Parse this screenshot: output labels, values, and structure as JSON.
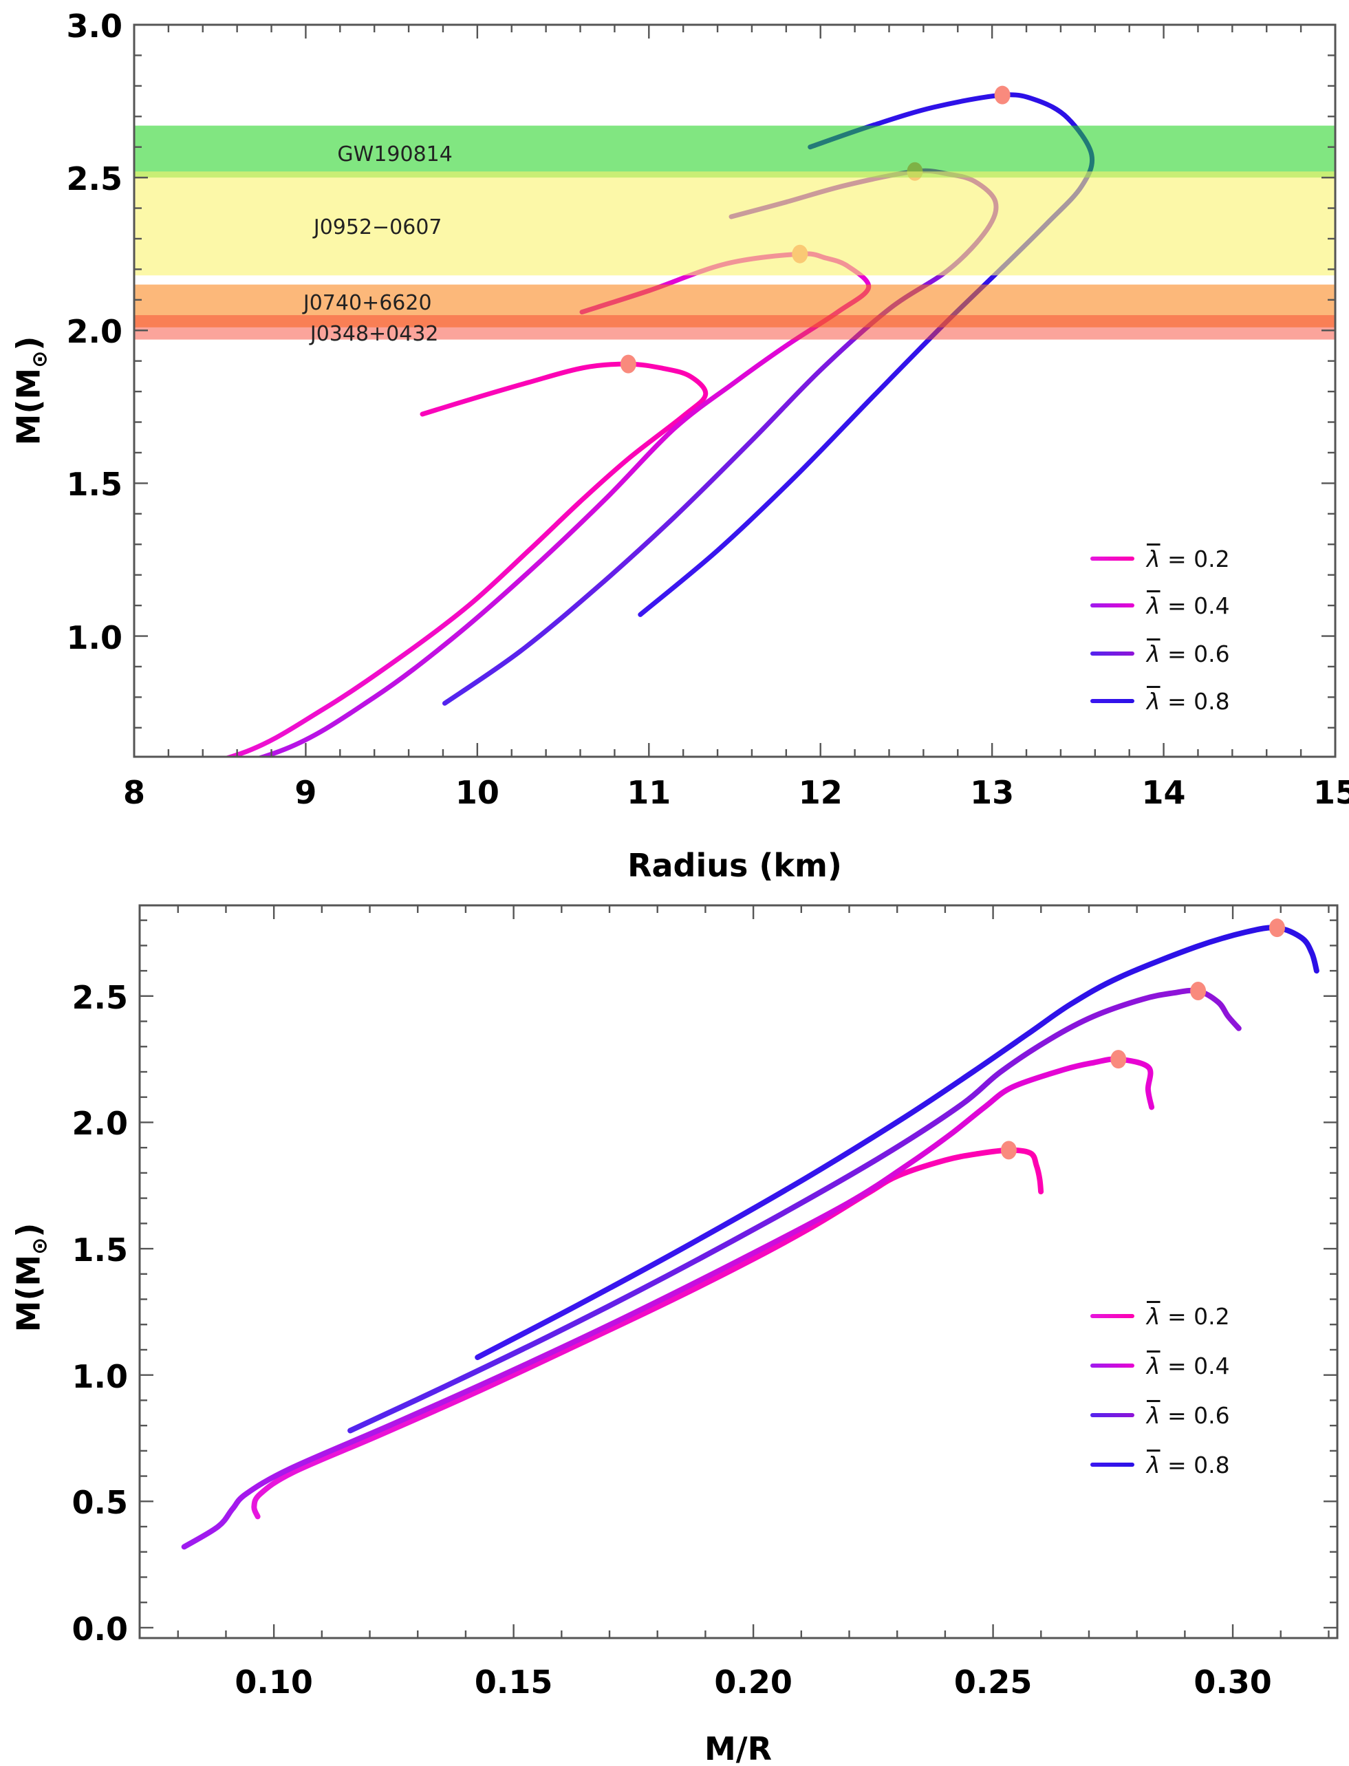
{
  "figure": {
    "description": "Two stacked plots of neutron star mass versus radius and versus compactness for four anisotropy parameters",
    "dot_color": "#F98A7D",
    "frame_color": "#555555"
  },
  "chart_data": [
    {
      "type": "line",
      "title": "",
      "xlabel": "Radius (km)",
      "ylabel": "M(M⊙)",
      "xlim": [
        8,
        15
      ],
      "ylim": [
        0.605,
        3.0
      ],
      "grid": false,
      "legend_position": "right-middle",
      "x_ticks": {
        "major": [
          8,
          9,
          10,
          11,
          12,
          13,
          14,
          15
        ],
        "labels": [
          "8",
          "9",
          "10",
          "11",
          "12",
          "13",
          "14",
          "15"
        ],
        "minor_step": 0.2
      },
      "y_ticks": {
        "major": [
          1.0,
          1.5,
          2.0,
          2.5,
          3.0
        ],
        "labels": [
          "1.0",
          "1.5",
          "2.0",
          "2.5",
          "3.0"
        ],
        "minor_step": 0.1
      },
      "bands": [
        {
          "name": "GW190814",
          "mass_range": [
            2.5,
            2.67
          ],
          "color": "rgba(25,210,25,0.55)",
          "label_r": 9.52,
          "label_m": 2.575
        },
        {
          "name": "J0952−0607",
          "mass_range": [
            2.18,
            2.52
          ],
          "color": "rgba(250,244,110,0.60)",
          "label_r": 9.42,
          "label_m": 2.335
        },
        {
          "name": "J0740+6620",
          "mass_range": [
            2.01,
            2.15
          ],
          "color": "rgba(249,126,12,0.55)",
          "label_r": 9.36,
          "label_m": 2.088
        },
        {
          "name": "J0348+0432",
          "mass_range": [
            1.97,
            2.05
          ],
          "color": "rgba(247,65,45,0.48)",
          "label_r": 9.4,
          "label_m": 1.988
        }
      ],
      "series": [
        {
          "name": "λ = 0.2",
          "lambda": "0.2",
          "color": "#FC02BC",
          "color_start": "#E616DE",
          "color_end": "#FF00B0",
          "points": [
            [
              6.64,
              0.44
            ],
            [
              7.3,
              0.48
            ],
            [
              7.95,
              0.53
            ],
            [
              8.62,
              0.615
            ],
            [
              9.1,
              0.76
            ],
            [
              9.55,
              0.93
            ],
            [
              9.95,
              1.1
            ],
            [
              10.3,
              1.28
            ],
            [
              10.6,
              1.44
            ],
            [
              10.88,
              1.58
            ],
            [
              11.2,
              1.72
            ],
            [
              11.33,
              1.79
            ],
            [
              11.24,
              1.85
            ],
            [
              11.08,
              1.876
            ],
            [
              10.88,
              1.89
            ],
            [
              10.62,
              1.878
            ],
            [
              10.3,
              1.83
            ],
            [
              9.97,
              1.776
            ],
            [
              9.68,
              1.726
            ]
          ],
          "peak": [
            10.88,
            1.89
          ]
        },
        {
          "name": "λ = 0.4",
          "lambda": "0.4",
          "color": "#E203E0",
          "color_start": "#9E1BEF",
          "color_end": "#E903D2",
          "points": [
            [
              5.74,
              0.32
            ],
            [
              6.6,
              0.4
            ],
            [
              7.5,
              0.47
            ],
            [
              8.2,
              0.53
            ],
            [
              8.88,
              0.63
            ],
            [
              9.4,
              0.8
            ],
            [
              9.85,
              0.99
            ],
            [
              10.3,
              1.21
            ],
            [
              10.75,
              1.45
            ],
            [
              11.15,
              1.68
            ],
            [
              11.5,
              1.83
            ],
            [
              11.8,
              1.95
            ],
            [
              12.1,
              2.06
            ],
            [
              12.28,
              2.14
            ],
            [
              12.16,
              2.21
            ],
            [
              12.03,
              2.237
            ],
            [
              11.88,
              2.25
            ],
            [
              11.45,
              2.218
            ],
            [
              11.0,
              2.13
            ],
            [
              10.61,
              2.06
            ]
          ],
          "peak": [
            11.88,
            2.25
          ]
        },
        {
          "name": "λ = 0.6",
          "lambda": "0.6",
          "color": "#8D12DC",
          "color_start": "#5324EE",
          "color_end": "#9013D8",
          "points": [
            [
              9.81,
              0.78
            ],
            [
              10.25,
              0.95
            ],
            [
              10.7,
              1.16
            ],
            [
              11.15,
              1.39
            ],
            [
              11.6,
              1.64
            ],
            [
              12.0,
              1.87
            ],
            [
              12.4,
              2.07
            ],
            [
              12.75,
              2.2
            ],
            [
              12.97,
              2.33
            ],
            [
              13.02,
              2.42
            ],
            [
              12.9,
              2.487
            ],
            [
              12.74,
              2.512
            ],
            [
              12.55,
              2.52
            ],
            [
              12.15,
              2.475
            ],
            [
              11.8,
              2.42
            ],
            [
              11.48,
              2.372
            ]
          ],
          "peak": [
            12.55,
            2.52
          ]
        },
        {
          "name": "λ = 0.8",
          "lambda": "0.8",
          "color": "#3113EC",
          "color_start": "#3B16F0",
          "color_end": "#2B10E6",
          "points": [
            [
              10.95,
              1.07
            ],
            [
              11.4,
              1.28
            ],
            [
              11.85,
              1.52
            ],
            [
              12.3,
              1.78
            ],
            [
              12.72,
              2.02
            ],
            [
              13.05,
              2.2
            ],
            [
              13.32,
              2.35
            ],
            [
              13.52,
              2.47
            ],
            [
              13.58,
              2.575
            ],
            [
              13.44,
              2.695
            ],
            [
              13.26,
              2.753
            ],
            [
              13.06,
              2.77
            ],
            [
              12.66,
              2.73
            ],
            [
              12.3,
              2.67
            ],
            [
              11.94,
              2.6
            ]
          ],
          "peak": [
            13.06,
            2.77
          ]
        }
      ],
      "legend": {
        "symbol": "λ",
        "equals": " = "
      }
    },
    {
      "type": "line",
      "title": "",
      "xlabel": "M/R",
      "ylabel": "M(M⊙)",
      "xlim": [
        0.072,
        0.3218
      ],
      "ylim": [
        -0.041,
        2.859
      ],
      "grid": false,
      "legend_position": "right-middle",
      "x_source": {
        "derived_from_chart": 0,
        "transform": "compactness",
        "factor": 1.458,
        "note": "x = factor * M / R"
      },
      "x_ticks": {
        "major": [
          0.1,
          0.15,
          0.2,
          0.25,
          0.3
        ],
        "labels": [
          "0.10",
          "0.15",
          "0.20",
          "0.25",
          "0.30"
        ],
        "minor_step": 0.01
      },
      "y_ticks": {
        "major": [
          0.0,
          0.5,
          1.0,
          1.5,
          2.0,
          2.5
        ],
        "labels": [
          "0.0",
          "0.5",
          "1.0",
          "1.5",
          "2.0",
          "2.5"
        ],
        "minor_step": 0.1
      },
      "bands": [],
      "legend": {
        "symbol": "λ",
        "equals": " = "
      }
    }
  ]
}
